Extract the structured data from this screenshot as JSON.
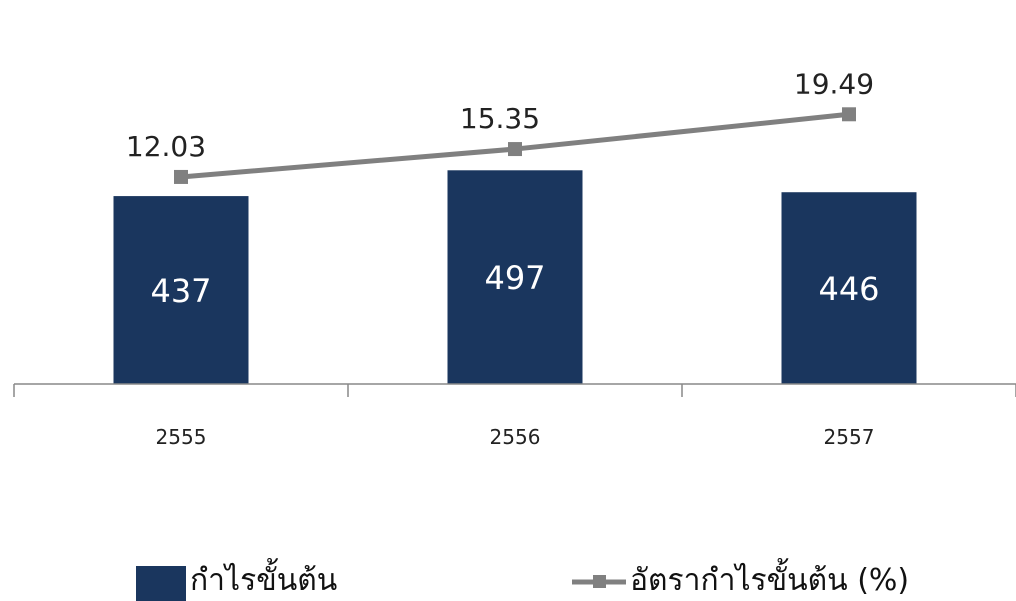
{
  "colors": {
    "bar": "#1a365e",
    "line": "#808080",
    "axis": "#888888"
  },
  "chart_data": {
    "type": "bar",
    "categories": [
      "2555",
      "2556",
      "2557"
    ],
    "series": [
      {
        "name": "กำไรขั้นต้น",
        "type": "bar",
        "values": [
          437,
          497,
          446
        ],
        "color": "#1a365e"
      },
      {
        "name": "อัตรากำไรขั้นต้น (%)",
        "type": "line",
        "values": [
          12.03,
          15.35,
          19.49
        ],
        "color": "#808080"
      }
    ],
    "grid": false,
    "legend": "bottom"
  }
}
